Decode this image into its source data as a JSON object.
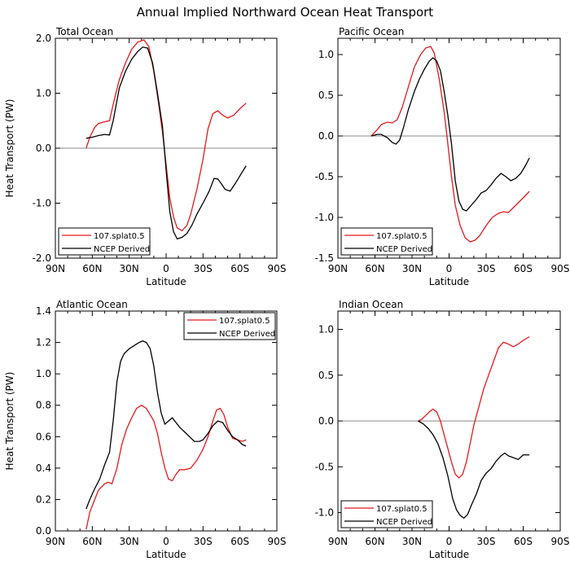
{
  "title": "Annual Implied Northward Ocean Heat Transport",
  "x_tick_labels": [
    "90N",
    "60N",
    "30N",
    "0",
    "30S",
    "60S",
    "90S"
  ],
  "colors": {
    "model": "#e41a1c",
    "obs": "#000000",
    "zero_line": "#888888"
  },
  "chart_data": [
    {
      "type": "line",
      "title": "Total Ocean",
      "xlabel": "Latitude",
      "ylabel": "Heat Transport (PW)",
      "xlim": [
        90,
        -90
      ],
      "ylim": [
        -2.0,
        2.0
      ],
      "y_ticks": [
        "-2.0",
        "-1.0",
        "0.0",
        "1.0",
        "2.0"
      ],
      "y_tick_values": [
        -2.0,
        -1.0,
        0.0,
        1.0,
        2.0
      ],
      "zero_line": true,
      "legend_position": "bottom-left",
      "series": [
        {
          "name": "107.splat0.5",
          "color": "#e41a1c",
          "x": [
            65,
            62,
            58,
            55,
            50,
            46,
            43,
            38,
            33,
            28,
            23,
            18,
            14,
            10,
            6,
            3,
            0,
            -3,
            -6,
            -9,
            -13,
            -17,
            -20,
            -25,
            -30,
            -34,
            -38,
            -42,
            -46,
            -50,
            -55,
            -60,
            -65
          ],
          "y": [
            0.0,
            0.2,
            0.38,
            0.45,
            0.48,
            0.5,
            0.8,
            1.25,
            1.55,
            1.8,
            1.93,
            1.97,
            1.85,
            1.4,
            0.8,
            0.3,
            -0.3,
            -0.9,
            -1.25,
            -1.45,
            -1.5,
            -1.4,
            -1.2,
            -0.75,
            -0.2,
            0.35,
            0.63,
            0.68,
            0.6,
            0.55,
            0.6,
            0.72,
            0.82
          ]
        },
        {
          "name": "NCEP Derived",
          "color": "#000000",
          "x": [
            65,
            60,
            55,
            50,
            46,
            43,
            38,
            33,
            28,
            23,
            19,
            15,
            11,
            7,
            3,
            0,
            -3,
            -6,
            -9,
            -13,
            -17,
            -21,
            -25,
            -30,
            -35,
            -39,
            -42,
            -45,
            -48,
            -52,
            -56,
            -60,
            -65
          ],
          "y": [
            0.18,
            0.2,
            0.23,
            0.25,
            0.24,
            0.5,
            1.1,
            1.4,
            1.62,
            1.76,
            1.84,
            1.82,
            1.55,
            1.0,
            0.4,
            -0.4,
            -1.15,
            -1.52,
            -1.65,
            -1.62,
            -1.55,
            -1.4,
            -1.2,
            -1.0,
            -0.78,
            -0.55,
            -0.56,
            -0.65,
            -0.75,
            -0.78,
            -0.65,
            -0.5,
            -0.32
          ]
        }
      ]
    },
    {
      "type": "line",
      "title": "Pacific Ocean",
      "xlabel": "Latitude",
      "ylabel": "",
      "xlim": [
        90,
        -90
      ],
      "ylim": [
        -1.5,
        1.2
      ],
      "y_ticks": [
        "-1.5",
        "-1.0",
        "-0.5",
        "0.0",
        "0.5",
        "1.0"
      ],
      "y_tick_values": [
        -1.5,
        -1.0,
        -0.5,
        0.0,
        0.5,
        1.0
      ],
      "zero_line": true,
      "legend_position": "bottom-left",
      "series": [
        {
          "name": "107.splat0.5",
          "color": "#e41a1c",
          "x": [
            63,
            58,
            55,
            50,
            46,
            42,
            38,
            33,
            28,
            23,
            19,
            15,
            12,
            8,
            4,
            1,
            -2,
            -5,
            -9,
            -13,
            -17,
            -21,
            -25,
            -30,
            -35,
            -40,
            -44,
            -48,
            -52,
            -56,
            -60,
            -65
          ],
          "y": [
            0.0,
            0.08,
            0.14,
            0.17,
            0.16,
            0.2,
            0.35,
            0.6,
            0.85,
            1.0,
            1.08,
            1.1,
            1.02,
            0.7,
            0.3,
            -0.1,
            -0.5,
            -0.85,
            -1.1,
            -1.25,
            -1.3,
            -1.28,
            -1.22,
            -1.1,
            -1.0,
            -0.95,
            -0.93,
            -0.94,
            -0.88,
            -0.82,
            -0.76,
            -0.68
          ]
        },
        {
          "name": "NCEP Derived",
          "color": "#000000",
          "x": [
            63,
            58,
            55,
            50,
            46,
            43,
            40,
            37,
            33,
            28,
            24,
            20,
            16,
            13,
            10,
            7,
            4,
            1,
            -2,
            -5,
            -8,
            -11,
            -14,
            -18,
            -22,
            -26,
            -30,
            -34,
            -38,
            -42,
            -46,
            -50,
            -54,
            -58,
            -62,
            -65
          ],
          "y": [
            0.0,
            0.02,
            0.02,
            -0.02,
            -0.08,
            -0.1,
            -0.05,
            0.1,
            0.32,
            0.55,
            0.7,
            0.82,
            0.92,
            0.96,
            0.92,
            0.8,
            0.55,
            0.25,
            -0.1,
            -0.55,
            -0.8,
            -0.9,
            -0.92,
            -0.85,
            -0.78,
            -0.7,
            -0.67,
            -0.6,
            -0.52,
            -0.46,
            -0.5,
            -0.55,
            -0.52,
            -0.46,
            -0.36,
            -0.27
          ]
        }
      ]
    },
    {
      "type": "line",
      "title": "Atlantic Ocean",
      "xlabel": "Latitude",
      "ylabel": "Heat Transport (PW)",
      "xlim": [
        90,
        -90
      ],
      "ylim": [
        0.0,
        1.4
      ],
      "y_ticks": [
        "0.0",
        "0.2",
        "0.4",
        "0.6",
        "0.8",
        "1.0",
        "1.2",
        "1.4"
      ],
      "y_tick_values": [
        0.0,
        0.2,
        0.4,
        0.6,
        0.8,
        1.0,
        1.2,
        1.4
      ],
      "zero_line": false,
      "legend_position": "top-right",
      "series": [
        {
          "name": "107.splat0.5",
          "color": "#e41a1c",
          "x": [
            65,
            62,
            58,
            55,
            50,
            47,
            44,
            40,
            36,
            32,
            28,
            24,
            20,
            16,
            13,
            10,
            7,
            4,
            1,
            -2,
            -5,
            -8,
            -11,
            -15,
            -20,
            -25,
            -30,
            -34,
            -38,
            -41,
            -44,
            -47,
            -50,
            -54,
            -58,
            -62,
            -65
          ],
          "y": [
            0.01,
            0.12,
            0.2,
            0.26,
            0.3,
            0.31,
            0.3,
            0.4,
            0.55,
            0.65,
            0.72,
            0.78,
            0.8,
            0.78,
            0.74,
            0.7,
            0.62,
            0.5,
            0.4,
            0.33,
            0.32,
            0.36,
            0.39,
            0.39,
            0.4,
            0.45,
            0.52,
            0.6,
            0.7,
            0.77,
            0.78,
            0.74,
            0.66,
            0.59,
            0.58,
            0.57,
            0.58
          ]
        },
        {
          "name": "NCEP Derived",
          "color": "#000000",
          "x": [
            65,
            62,
            58,
            54,
            50,
            46,
            43,
            40,
            37,
            34,
            30,
            26,
            22,
            19,
            16,
            13,
            10,
            7,
            4,
            1,
            -2,
            -5,
            -8,
            -11,
            -15,
            -19,
            -23,
            -27,
            -30,
            -34,
            -38,
            -42,
            -46,
            -50,
            -54,
            -58,
            -62,
            -65
          ],
          "y": [
            0.14,
            0.2,
            0.27,
            0.33,
            0.42,
            0.5,
            0.7,
            0.95,
            1.08,
            1.13,
            1.16,
            1.18,
            1.2,
            1.21,
            1.2,
            1.16,
            1.05,
            0.88,
            0.75,
            0.68,
            0.7,
            0.72,
            0.69,
            0.66,
            0.63,
            0.6,
            0.57,
            0.57,
            0.58,
            0.62,
            0.67,
            0.7,
            0.69,
            0.64,
            0.6,
            0.58,
            0.55,
            0.54
          ]
        }
      ]
    },
    {
      "type": "line",
      "title": "Indian Ocean",
      "xlabel": "Latitude",
      "ylabel": "",
      "xlim": [
        90,
        -90
      ],
      "ylim": [
        -1.2,
        1.2
      ],
      "y_ticks": [
        "-1.0",
        "-0.5",
        "0.0",
        "0.5",
        "1.0"
      ],
      "y_tick_values": [
        -1.0,
        -0.5,
        0.0,
        0.5,
        1.0
      ],
      "zero_line": true,
      "legend_position": "bottom-left",
      "series": [
        {
          "name": "107.splat0.5",
          "color": "#e41a1c",
          "x": [
            25,
            22,
            19,
            16,
            13,
            10,
            7,
            4,
            1,
            -2,
            -5,
            -8,
            -11,
            -14,
            -17,
            -20,
            -24,
            -28,
            -32,
            -36,
            -40,
            -44,
            -48,
            -52,
            -56,
            -60,
            -65
          ],
          "y": [
            0.0,
            0.02,
            0.06,
            0.1,
            0.13,
            0.1,
            0.0,
            -0.15,
            -0.3,
            -0.45,
            -0.58,
            -0.62,
            -0.58,
            -0.45,
            -0.25,
            -0.05,
            0.15,
            0.35,
            0.5,
            0.65,
            0.8,
            0.86,
            0.84,
            0.81,
            0.84,
            0.88,
            0.92
          ]
        },
        {
          "name": "NCEP Derived",
          "color": "#000000",
          "x": [
            25,
            21,
            17,
            13,
            9,
            5,
            1,
            -3,
            -6,
            -9,
            -12,
            -15,
            -18,
            -22,
            -26,
            -30,
            -34,
            -38,
            -42,
            -45,
            -48,
            -52,
            -56,
            -60,
            -65
          ],
          "y": [
            0.0,
            -0.03,
            -0.08,
            -0.15,
            -0.25,
            -0.4,
            -0.6,
            -0.85,
            -0.97,
            -1.03,
            -1.06,
            -1.02,
            -0.92,
            -0.8,
            -0.65,
            -0.57,
            -0.52,
            -0.44,
            -0.38,
            -0.35,
            -0.38,
            -0.4,
            -0.42,
            -0.37,
            -0.37
          ]
        }
      ]
    }
  ]
}
